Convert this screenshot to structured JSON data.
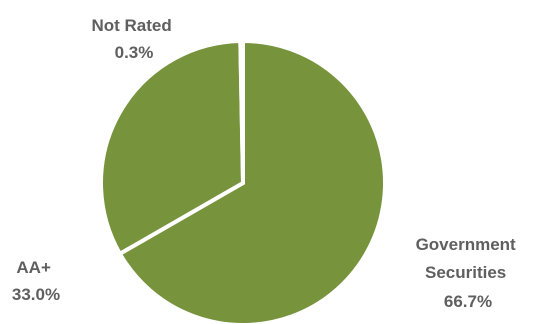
{
  "chart_data": {
    "type": "pie",
    "title": "",
    "categories": [
      "Government Securities",
      "AA+",
      "Not Rated"
    ],
    "values": [
      66.7,
      33.0,
      0.3
    ],
    "value_labels": [
      "66.7%",
      "33.0%",
      "0.3%"
    ],
    "colors": [
      "#77933c",
      "#77933c",
      "#77933c"
    ],
    "slice_border_color": "#ffffff",
    "legend": "none",
    "labels": [
      {
        "lines": [
          "Government",
          "Securities"
        ],
        "value": "66.7%"
      },
      {
        "lines": [
          "AA+"
        ],
        "value": "33.0%"
      },
      {
        "lines": [
          "Not Rated"
        ],
        "value": "0.3%"
      }
    ]
  }
}
